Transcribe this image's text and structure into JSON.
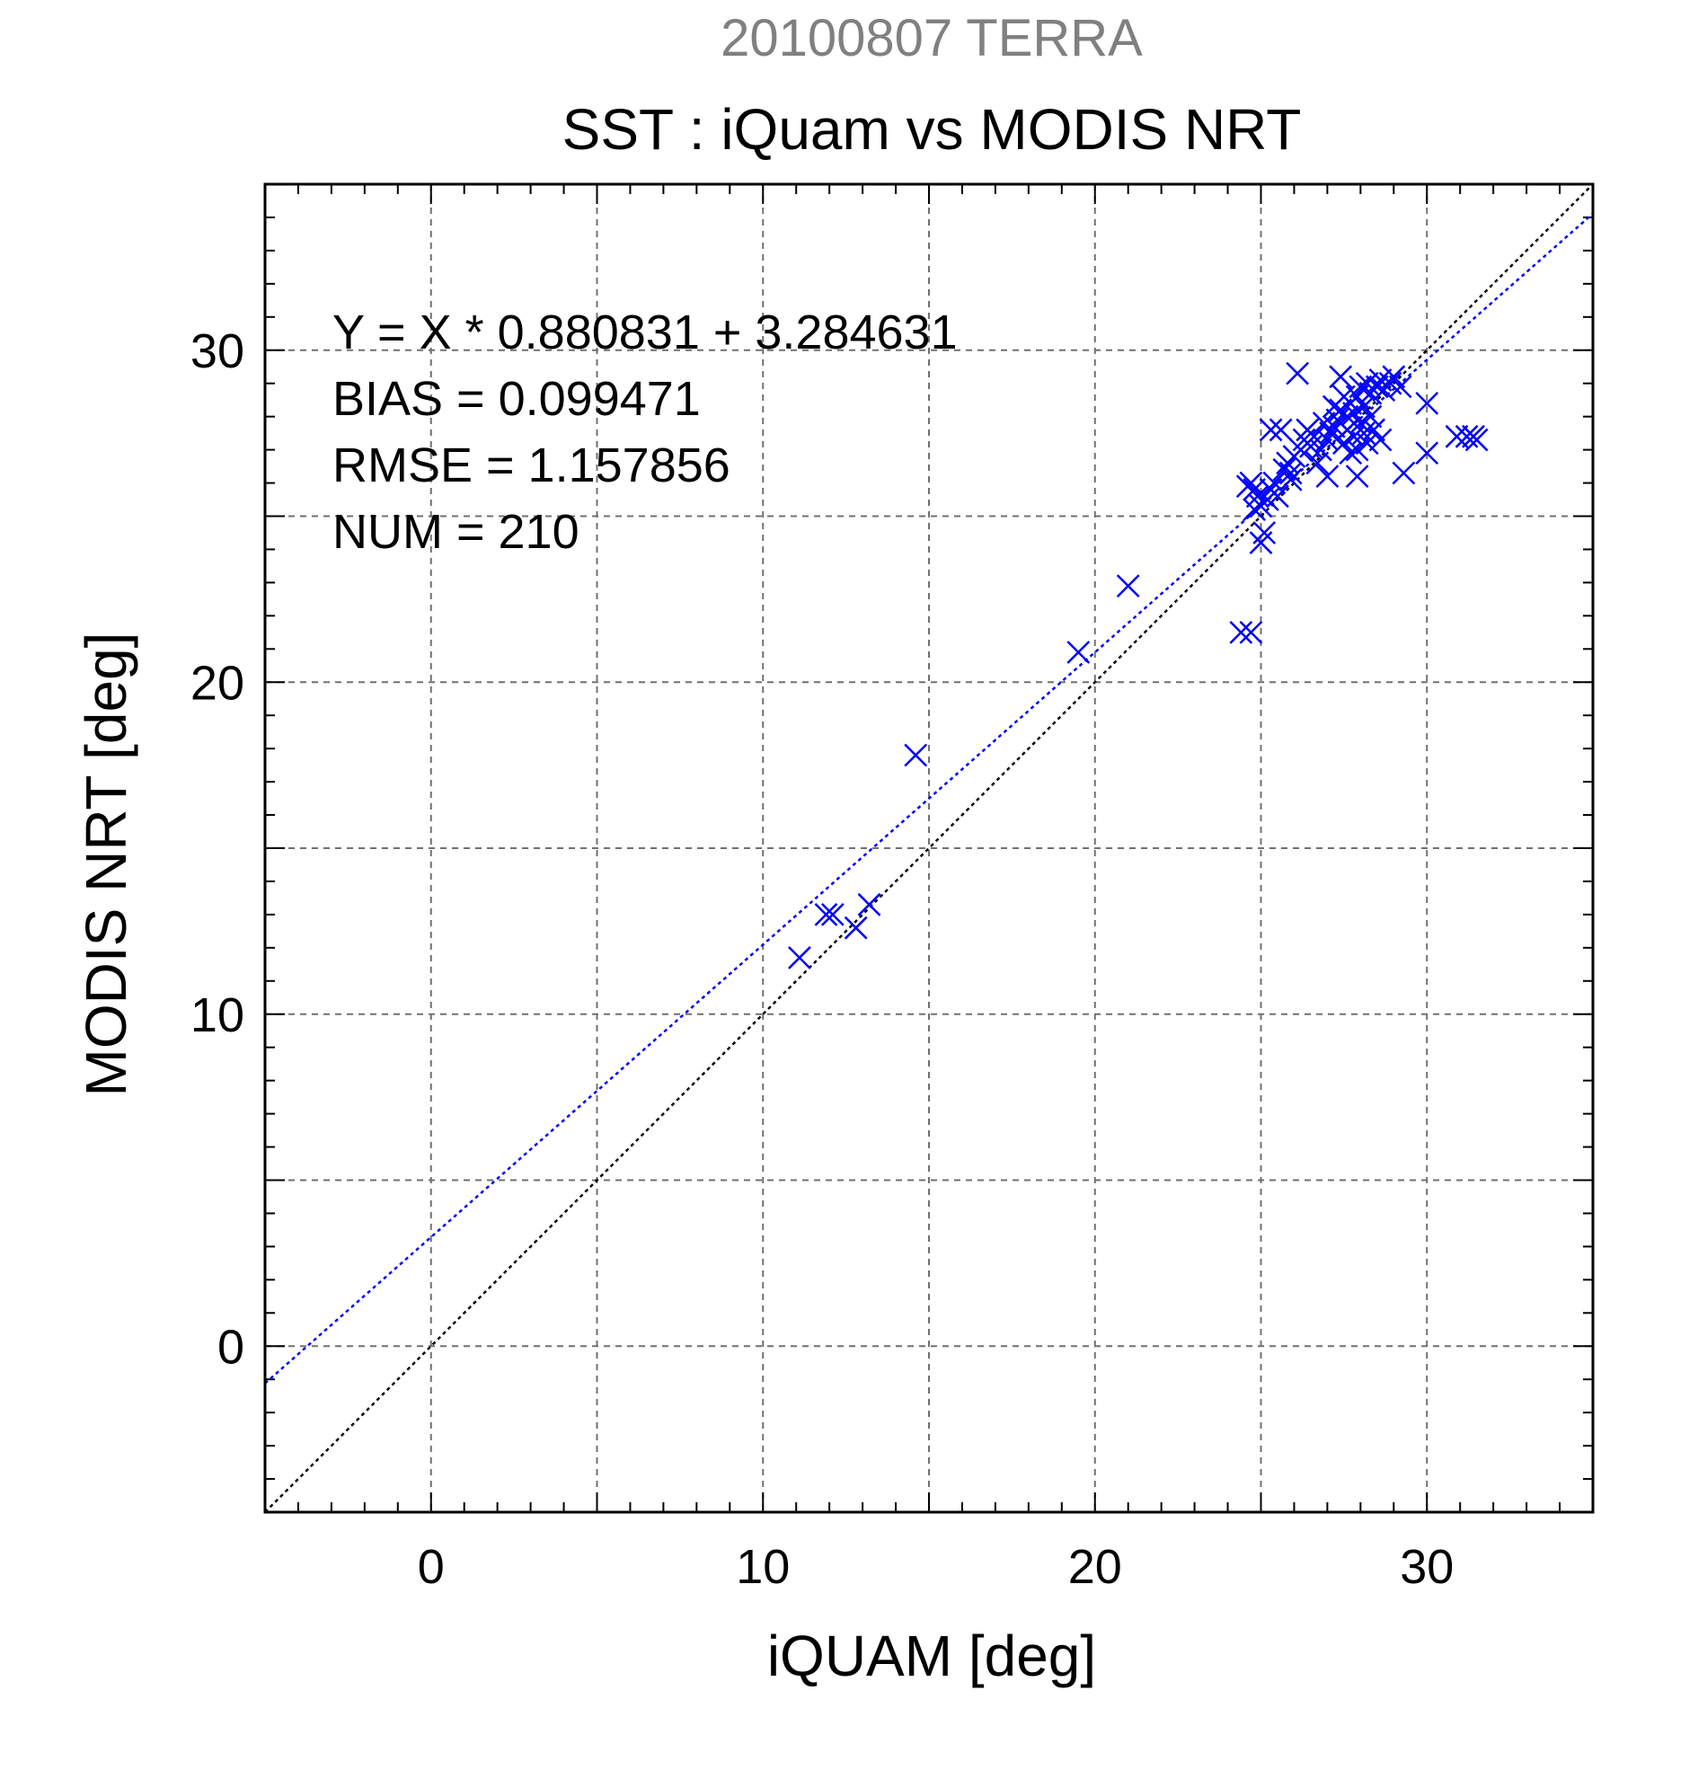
{
  "chart_data": {
    "type": "scatter",
    "supertitle": "20100807 TERRA",
    "title": "SST : iQuam vs MODIS NRT",
    "xlabel": "iQUAM [deg]",
    "ylabel": "MODIS NRT [deg]",
    "xlim": [
      -5,
      35
    ],
    "ylim": [
      -5,
      35
    ],
    "xticks": [
      0,
      10,
      20,
      30
    ],
    "yticks": [
      0,
      10,
      20,
      30
    ],
    "grid": true,
    "colors": {
      "points": "#0000ff",
      "fit_line": "#0000ff",
      "identity_line": "#000000",
      "supertitle": "#808080"
    },
    "marker": "x",
    "stats": [
      "Y = X * 0.880831 + 3.284631",
      "BIAS = 0.099471",
      "RMSE = 1.157856",
      "NUM = 210"
    ],
    "fit": {
      "slope": 0.880831,
      "intercept": 3.284631
    },
    "identity_line": {
      "slope": 1,
      "intercept": 0
    },
    "points": [
      [
        11.1,
        11.7
      ],
      [
        11.9,
        13.0
      ],
      [
        12.1,
        13.0
      ],
      [
        12.8,
        12.6
      ],
      [
        13.2,
        13.3
      ],
      [
        14.6,
        17.8
      ],
      [
        19.5,
        20.9
      ],
      [
        21.0,
        22.9
      ],
      [
        24.4,
        21.5
      ],
      [
        24.7,
        21.5
      ],
      [
        24.6,
        25.9
      ],
      [
        24.7,
        26.0
      ],
      [
        24.8,
        25.8
      ],
      [
        24.9,
        25.6
      ],
      [
        25.0,
        25.3
      ],
      [
        25.1,
        24.5
      ],
      [
        25.0,
        24.2
      ],
      [
        24.8,
        25.2
      ],
      [
        25.2,
        25.5
      ],
      [
        25.3,
        25.8
      ],
      [
        25.4,
        26.0
      ],
      [
        25.5,
        25.6
      ],
      [
        25.3,
        27.6
      ],
      [
        25.6,
        27.6
      ],
      [
        25.7,
        26.4
      ],
      [
        25.8,
        26.6
      ],
      [
        25.9,
        26.1
      ],
      [
        26.0,
        26.8
      ],
      [
        26.1,
        29.3
      ],
      [
        26.2,
        27.0
      ],
      [
        26.3,
        27.3
      ],
      [
        26.4,
        27.6
      ],
      [
        26.5,
        27.1
      ],
      [
        26.6,
        27.4
      ],
      [
        26.8,
        27.0
      ],
      [
        26.9,
        27.8
      ],
      [
        27.0,
        26.2
      ],
      [
        27.1,
        27.5
      ],
      [
        27.2,
        27.7
      ],
      [
        27.3,
        27.9
      ],
      [
        27.4,
        28.2
      ],
      [
        27.4,
        29.2
      ],
      [
        27.5,
        27.2
      ],
      [
        27.6,
        27.6
      ],
      [
        27.6,
        28.0
      ],
      [
        27.7,
        28.4
      ],
      [
        27.7,
        26.9
      ],
      [
        27.8,
        27.4
      ],
      [
        27.8,
        28.1
      ],
      [
        27.9,
        28.6
      ],
      [
        27.9,
        26.2
      ],
      [
        28.0,
        27.8
      ],
      [
        28.0,
        28.9
      ],
      [
        28.1,
        27.5
      ],
      [
        28.1,
        28.3
      ],
      [
        28.2,
        29.0
      ],
      [
        28.2,
        27.2
      ],
      [
        28.3,
        28.7
      ],
      [
        28.4,
        27.6
      ],
      [
        28.5,
        28.9
      ],
      [
        28.6,
        27.3
      ],
      [
        28.6,
        29.1
      ],
      [
        28.7,
        28.8
      ],
      [
        28.9,
        29.0
      ],
      [
        29.0,
        29.2
      ],
      [
        29.2,
        28.9
      ],
      [
        29.3,
        26.3
      ],
      [
        30.0,
        28.4
      ],
      [
        30.0,
        26.9
      ],
      [
        30.9,
        27.4
      ],
      [
        31.2,
        27.4
      ],
      [
        31.4,
        27.4
      ],
      [
        31.5,
        27.3
      ],
      [
        27.2,
        28.3
      ],
      [
        27.5,
        28.6
      ],
      [
        27.9,
        27.0
      ],
      [
        28.3,
        28.0
      ],
      [
        26.7,
        26.6
      ],
      [
        27.0,
        27.3
      ],
      [
        25.9,
        26.3
      ]
    ]
  }
}
